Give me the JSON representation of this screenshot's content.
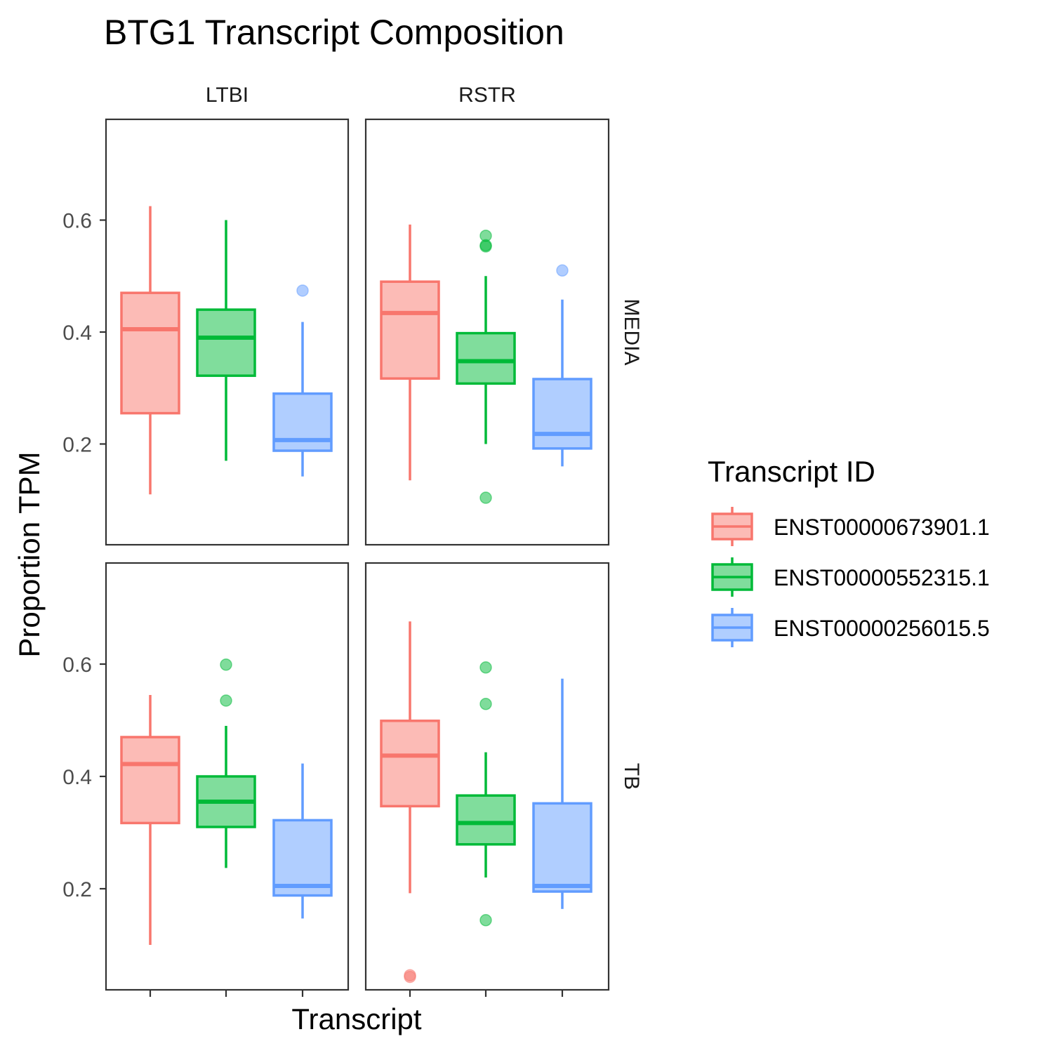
{
  "chart_data": {
    "type": "boxplot",
    "title": "BTG1 Transcript Composition",
    "xlabel": "Transcript",
    "ylabel": "Proportion TPM",
    "ylim": [
      0.02,
      0.78
    ],
    "yticks": [
      0.2,
      0.4,
      0.6
    ],
    "ytick_labels": [
      "0.2",
      "0.4",
      "0.6"
    ],
    "grid": false,
    "facet_columns": [
      "LTBI",
      "RSTR"
    ],
    "facet_rows": [
      "MEDIA",
      "TB"
    ],
    "legend": {
      "title": "Transcript ID",
      "position": "right",
      "items": [
        {
          "label": "ENST00000673901.1",
          "color": "#F8766D"
        },
        {
          "label": "ENST00000552315.1",
          "color": "#00BA38"
        },
        {
          "label": "ENST00000256015.5",
          "color": "#619CFF"
        }
      ]
    },
    "panels": [
      {
        "col": "LTBI",
        "row": "MEDIA",
        "boxes": [
          {
            "transcript": "ENST00000673901.1",
            "lower_whisker": 0.11,
            "q1": 0.255,
            "median": 0.405,
            "q3": 0.47,
            "upper_whisker": 0.625,
            "outliers": []
          },
          {
            "transcript": "ENST00000552315.1",
            "lower_whisker": 0.17,
            "q1": 0.322,
            "median": 0.39,
            "q3": 0.44,
            "upper_whisker": 0.6,
            "outliers": []
          },
          {
            "transcript": "ENST00000256015.5",
            "lower_whisker": 0.142,
            "q1": 0.188,
            "median": 0.207,
            "q3": 0.29,
            "upper_whisker": 0.418,
            "outliers": [
              0.474
            ]
          }
        ]
      },
      {
        "col": "RSTR",
        "row": "MEDIA",
        "boxes": [
          {
            "transcript": "ENST00000673901.1",
            "lower_whisker": 0.135,
            "q1": 0.317,
            "median": 0.434,
            "q3": 0.49,
            "upper_whisker": 0.592,
            "outliers": []
          },
          {
            "transcript": "ENST00000552315.1",
            "lower_whisker": 0.2,
            "q1": 0.308,
            "median": 0.348,
            "q3": 0.398,
            "upper_whisker": 0.5,
            "outliers": [
              0.572,
              0.553,
              0.555,
              0.104
            ]
          },
          {
            "transcript": "ENST00000256015.5",
            "lower_whisker": 0.16,
            "q1": 0.192,
            "median": 0.218,
            "q3": 0.316,
            "upper_whisker": 0.458,
            "outliers": [
              0.51
            ]
          }
        ]
      },
      {
        "col": "LTBI",
        "row": "TB",
        "boxes": [
          {
            "transcript": "ENST00000673901.1",
            "lower_whisker": 0.1,
            "q1": 0.317,
            "median": 0.422,
            "q3": 0.47,
            "upper_whisker": 0.545,
            "outliers": []
          },
          {
            "transcript": "ENST00000552315.1",
            "lower_whisker": 0.237,
            "q1": 0.31,
            "median": 0.355,
            "q3": 0.4,
            "upper_whisker": 0.49,
            "outliers": [
              0.535,
              0.599
            ]
          },
          {
            "transcript": "ENST00000256015.5",
            "lower_whisker": 0.147,
            "q1": 0.188,
            "median": 0.205,
            "q3": 0.322,
            "upper_whisker": 0.423,
            "outliers": []
          }
        ]
      },
      {
        "col": "RSTR",
        "row": "TB",
        "boxes": [
          {
            "transcript": "ENST00000673901.1",
            "lower_whisker": 0.192,
            "q1": 0.347,
            "median": 0.437,
            "q3": 0.499,
            "upper_whisker": 0.676,
            "outliers": [
              0.046,
              0.043
            ]
          },
          {
            "transcript": "ENST00000552315.1",
            "lower_whisker": 0.22,
            "q1": 0.279,
            "median": 0.317,
            "q3": 0.366,
            "upper_whisker": 0.443,
            "outliers": [
              0.594,
              0.529,
              0.144
            ]
          },
          {
            "transcript": "ENST00000256015.5",
            "lower_whisker": 0.164,
            "q1": 0.195,
            "median": 0.205,
            "q3": 0.352,
            "upper_whisker": 0.574,
            "outliers": []
          }
        ]
      }
    ]
  }
}
